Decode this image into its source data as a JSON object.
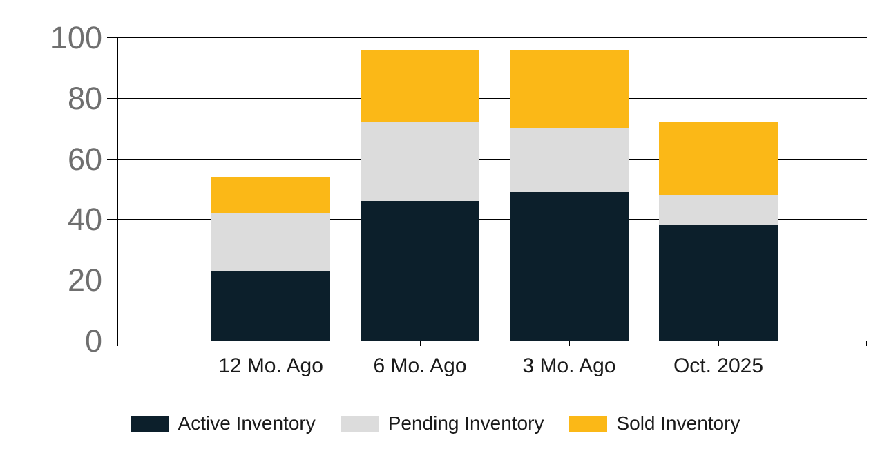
{
  "chart_data": {
    "type": "bar",
    "stacked": true,
    "title": "",
    "categories": [
      "12 Mo. Ago",
      "6 Mo. Ago",
      "3 Mo. Ago",
      "Oct. 2025"
    ],
    "series": [
      {
        "name": "Active Inventory",
        "color": "#0c1f2b",
        "values": [
          23,
          46,
          49,
          38
        ]
      },
      {
        "name": "Pending Inventory",
        "color": "#dcdcdc",
        "values": [
          19,
          26,
          21,
          10
        ]
      },
      {
        "name": "Sold Inventory",
        "color": "#fbb817",
        "values": [
          12,
          24,
          26,
          24
        ]
      }
    ],
    "stack_totals": [
      54,
      96,
      96,
      72
    ],
    "ylim": [
      0,
      100
    ],
    "yticks": [
      0,
      20,
      40,
      60,
      80,
      100
    ],
    "grid": true,
    "legend_position": "bottom",
    "colors": {
      "grid": "#000000",
      "axis": "#000000",
      "ytick_label": "#6f6f6f",
      "xtick_label": "#1a1a1a",
      "legend_label": "#1a1a1a",
      "background": "#ffffff"
    }
  }
}
